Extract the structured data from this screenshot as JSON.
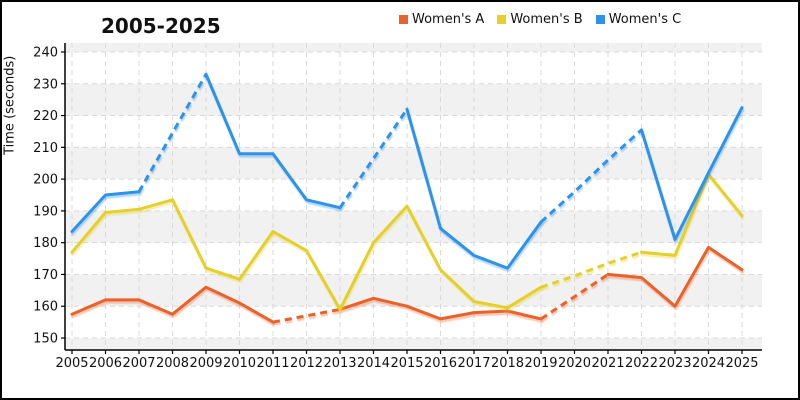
{
  "title": "2005-2025",
  "y_axis": {
    "label": "Time (seconds)",
    "ticks": [
      150,
      160,
      170,
      180,
      190,
      200,
      210,
      220,
      230,
      240
    ]
  },
  "x_axis": {
    "ticks": [
      "2005",
      "2006",
      "2007",
      "2008",
      "2009",
      "2010",
      "2011",
      "2012",
      "2013",
      "2014",
      "2015",
      "2016",
      "2017",
      "2018",
      "2019",
      "2020",
      "2021",
      "2022",
      "2023",
      "2024",
      "2025"
    ]
  },
  "legend": [
    {
      "label": "Women's A",
      "color": "#E8622C"
    },
    {
      "label": "Women's B",
      "color": "#E5CF2C"
    },
    {
      "label": "Women's C",
      "color": "#2E92E8"
    }
  ],
  "chart_data": {
    "type": "line",
    "title": "2005-2025",
    "ylabel": "Time (seconds)",
    "xlabel": "",
    "x": [
      2005,
      2006,
      2007,
      2008,
      2009,
      2010,
      2011,
      2012,
      2013,
      2014,
      2015,
      2016,
      2017,
      2018,
      2019,
      2020,
      2021,
      2022,
      2023,
      2024,
      2025
    ],
    "ylim": [
      146,
      243
    ],
    "grid": true,
    "legend_position": "top-right",
    "note": "dashed_segments are year ranges drawn with a dashed (interpolated) line",
    "series": [
      {
        "name": "Women's A",
        "color": "#E8622C",
        "values": [
          157.5,
          162,
          162,
          157.5,
          166,
          161,
          155,
          157,
          159,
          162.5,
          160,
          156,
          158,
          158.5,
          156,
          163,
          170,
          169,
          160,
          178.5,
          171.5
        ],
        "dashed_segments": [
          [
            2011,
            2013
          ],
          [
            2019,
            2021
          ]
        ]
      },
      {
        "name": "Women's B",
        "color": "#E5CF2C",
        "values": [
          177,
          189.5,
          190.5,
          193.5,
          172,
          168.5,
          183.5,
          177.5,
          159,
          180,
          191.5,
          171.5,
          161.5,
          159.5,
          166,
          169.5,
          173.5,
          177,
          176,
          201.5,
          188.5
        ],
        "dashed_segments": [
          [
            2019,
            2022
          ]
        ]
      },
      {
        "name": "Women's C",
        "color": "#2E92E8",
        "values": [
          183.5,
          195,
          196,
          214.5,
          233,
          208,
          208,
          193.5,
          191,
          206.5,
          222,
          184.5,
          176,
          172,
          186.5,
          196,
          206,
          215.5,
          181,
          202,
          222.5
        ],
        "dashed_segments": [
          [
            2007,
            2009
          ],
          [
            2013,
            2015
          ],
          [
            2019,
            2022
          ]
        ]
      }
    ]
  },
  "style": {
    "band_color": "#f1f1f1",
    "grid_color": "#d9d9d9",
    "axis_color": "#000000",
    "background": "#ffffff"
  }
}
